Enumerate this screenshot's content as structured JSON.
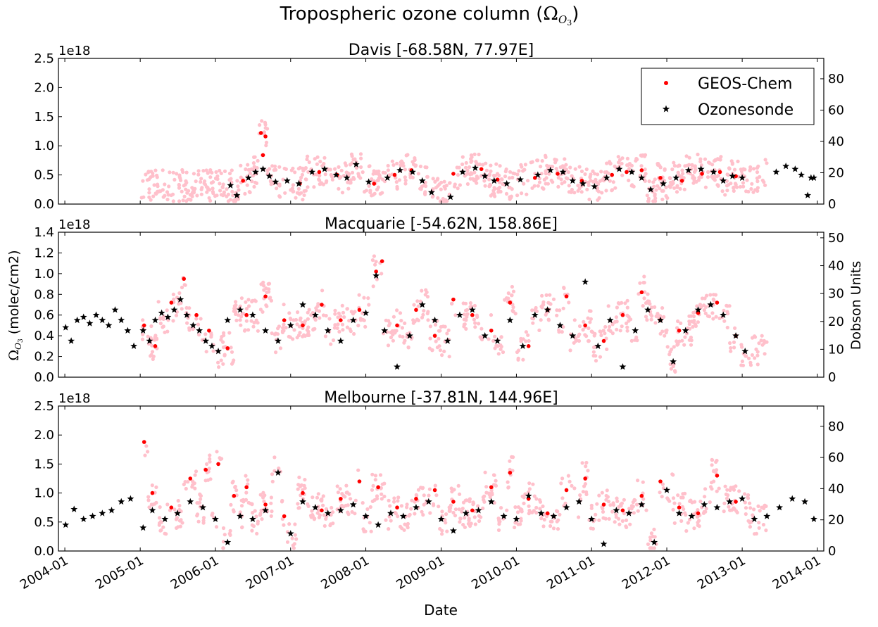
{
  "figure": {
    "title_text": "Tropospheric ozone column (",
    "title_symbol": "Ω",
    "title_sub": "O",
    "title_subsub": "3",
    "title_close": ")",
    "xlabel": "Date",
    "ylabel_left_symbol": "Ω",
    "ylabel_left_sub": "O",
    "ylabel_left_subsub": "3",
    "ylabel_left_rest": " (molec/cm2)",
    "ylabel_right": "Dobson Units",
    "x_ticks": [
      "2004-01",
      "2005-01",
      "2006-01",
      "2007-01",
      "2008-01",
      "2009-01",
      "2010-01",
      "2011-01",
      "2012-01",
      "2013-01",
      "2014-01"
    ],
    "colors": {
      "geos": "#ff0000",
      "geos_light": "#ffc0cb",
      "sonde": "#000000"
    }
  },
  "chart_data": [
    {
      "type": "scatter",
      "title": "Davis [-68.58N, 77.97E]",
      "exponent_label": "1e18",
      "xlim": [
        "2003-12-01",
        "2014-02-01"
      ],
      "ylim": [
        0,
        2.5
      ],
      "y_ticks": [
        "0.0",
        "0.5",
        "1.0",
        "1.5",
        "2.0",
        "2.5"
      ],
      "y2lim": [
        0,
        93
      ],
      "y2_ticks": [
        "0",
        "20",
        "40",
        "60",
        "80"
      ],
      "legend": {
        "placement": "top-right",
        "entries": [
          "GEOS-Chem",
          "Ozonesonde"
        ]
      },
      "series": [
        {
          "name": "GEOS-Chem",
          "color": "#ff0000",
          "marker": "circle",
          "x": [
            "2006-05-15",
            "2006-08-10",
            "2006-08-20",
            "2006-09-01",
            "2007-02-15",
            "2007-05-20",
            "2007-08-15",
            "2008-02-10",
            "2008-05-20",
            "2008-08-10",
            "2009-03-01",
            "2009-07-15",
            "2009-10-01",
            "2010-04-01",
            "2010-07-20",
            "2010-11-15",
            "2011-04-10",
            "2011-06-20",
            "2011-09-01",
            "2011-12-01",
            "2012-03-15",
            "2012-06-20",
            "2012-09-15",
            "2012-12-01"
          ],
          "y": [
            0.4,
            1.22,
            0.84,
            1.16,
            0.35,
            0.55,
            0.5,
            0.35,
            0.5,
            0.58,
            0.52,
            0.6,
            0.42,
            0.45,
            0.52,
            0.4,
            0.5,
            0.55,
            0.58,
            0.45,
            0.4,
            0.52,
            0.55,
            0.48
          ]
        },
        {
          "name": "Ozonesonde",
          "color": "#000000",
          "marker": "star",
          "x": [
            "2006-03-15",
            "2006-04-15",
            "2006-06-10",
            "2006-07-15",
            "2006-08-20",
            "2006-09-20",
            "2006-10-20",
            "2006-12-15",
            "2007-02-10",
            "2007-04-15",
            "2007-06-15",
            "2007-08-10",
            "2007-10-01",
            "2007-11-15",
            "2008-01-15",
            "2008-04-15",
            "2008-06-15",
            "2008-08-15",
            "2008-10-01",
            "2008-11-15",
            "2009-02-15",
            "2009-04-15",
            "2009-06-15",
            "2009-08-01",
            "2009-09-15",
            "2009-11-15",
            "2010-01-20",
            "2010-04-15",
            "2010-06-15",
            "2010-08-15",
            "2010-10-01",
            "2010-11-20",
            "2011-01-15",
            "2011-03-15",
            "2011-05-15",
            "2011-07-15",
            "2011-09-01",
            "2011-10-15",
            "2011-12-15",
            "2012-02-15",
            "2012-04-15",
            "2012-06-15",
            "2012-08-15",
            "2012-10-01",
            "2012-11-15",
            "2013-01-01",
            "2013-06-15",
            "2013-08-01",
            "2013-09-15",
            "2013-10-15",
            "2013-11-15",
            "2013-12-01",
            "2013-12-15"
          ],
          "y": [
            0.32,
            0.15,
            0.45,
            0.55,
            0.6,
            0.48,
            0.38,
            0.4,
            0.35,
            0.55,
            0.6,
            0.5,
            0.45,
            0.68,
            0.38,
            0.45,
            0.58,
            0.55,
            0.4,
            0.2,
            0.12,
            0.55,
            0.62,
            0.48,
            0.4,
            0.35,
            0.42,
            0.5,
            0.58,
            0.55,
            0.4,
            0.35,
            0.3,
            0.45,
            0.6,
            0.55,
            0.45,
            0.25,
            0.35,
            0.45,
            0.58,
            0.6,
            0.55,
            0.4,
            0.48,
            0.45,
            0.55,
            0.65,
            0.6,
            0.5,
            0.15,
            0.45,
            0.45
          ]
        }
      ]
    },
    {
      "type": "scatter",
      "title": "Macquarie [-54.62N, 158.86E]",
      "exponent_label": "1e18",
      "xlim": [
        "2003-12-01",
        "2014-02-01"
      ],
      "ylim": [
        0,
        1.4
      ],
      "y_ticks": [
        "0.0",
        "0.2",
        "0.4",
        "0.6",
        "0.8",
        "1.0",
        "1.2",
        "1.4"
      ],
      "y2lim": [
        0,
        52
      ],
      "y2_ticks": [
        "0",
        "10",
        "20",
        "30",
        "40",
        "50"
      ],
      "series": [
        {
          "name": "GEOS-Chem",
          "color": "#ff0000",
          "marker": "circle",
          "x": [
            "2005-01-20",
            "2005-03-15",
            "2005-06-01",
            "2005-08-01",
            "2005-10-01",
            "2005-12-01",
            "2006-03-01",
            "2006-06-01",
            "2006-09-01",
            "2006-12-01",
            "2007-03-01",
            "2007-06-01",
            "2007-09-01",
            "2007-12-01",
            "2008-02-20",
            "2008-03-20",
            "2008-06-01",
            "2008-09-01",
            "2008-12-01",
            "2009-03-01",
            "2009-06-01",
            "2009-09-01",
            "2009-12-01",
            "2010-03-01",
            "2010-06-01",
            "2010-09-01",
            "2010-12-01",
            "2011-03-01",
            "2011-06-01",
            "2011-09-01",
            "2011-12-01",
            "2012-03-01",
            "2012-06-01",
            "2012-09-01",
            "2012-12-01"
          ],
          "y": [
            0.5,
            0.3,
            0.72,
            0.95,
            0.6,
            0.45,
            0.28,
            0.6,
            0.78,
            0.55,
            0.5,
            0.7,
            0.55,
            0.65,
            1.02,
            1.12,
            0.5,
            0.65,
            0.4,
            0.75,
            0.6,
            0.45,
            0.72,
            0.3,
            0.65,
            0.78,
            0.5,
            0.35,
            0.6,
            0.82,
            0.55,
            0.45,
            0.62,
            0.72,
            0.4
          ]
        },
        {
          "name": "Ozonesonde",
          "color": "#000000",
          "marker": "star",
          "x": [
            "2004-01-05",
            "2004-02-01",
            "2004-03-01",
            "2004-04-01",
            "2004-05-01",
            "2004-06-01",
            "2004-07-01",
            "2004-08-01",
            "2004-09-01",
            "2004-10-01",
            "2004-11-01",
            "2004-12-01",
            "2005-01-15",
            "2005-02-15",
            "2005-03-15",
            "2005-04-15",
            "2005-05-15",
            "2005-06-15",
            "2005-07-15",
            "2005-08-15",
            "2005-09-15",
            "2005-10-15",
            "2005-11-15",
            "2005-12-15",
            "2006-01-15",
            "2006-03-01",
            "2006-05-01",
            "2006-07-01",
            "2006-09-01",
            "2006-11-01",
            "2007-01-01",
            "2007-03-01",
            "2007-05-01",
            "2007-07-01",
            "2007-09-01",
            "2007-11-01",
            "2008-01-01",
            "2008-02-20",
            "2008-04-01",
            "2008-06-01",
            "2008-08-01",
            "2008-10-01",
            "2008-12-01",
            "2009-02-01",
            "2009-04-01",
            "2009-06-01",
            "2009-08-01",
            "2009-10-01",
            "2009-12-01",
            "2010-02-01",
            "2010-04-01",
            "2010-06-01",
            "2010-08-01",
            "2010-10-01",
            "2010-12-01",
            "2011-02-01",
            "2011-04-01",
            "2011-06-01",
            "2011-08-01",
            "2011-10-01",
            "2011-12-01",
            "2012-02-01",
            "2012-04-01",
            "2012-06-01",
            "2012-08-01",
            "2012-10-01",
            "2012-12-01",
            "2013-01-15"
          ],
          "y": [
            0.48,
            0.35,
            0.55,
            0.58,
            0.52,
            0.6,
            0.55,
            0.5,
            0.65,
            0.55,
            0.45,
            0.3,
            0.45,
            0.35,
            0.55,
            0.62,
            0.58,
            0.65,
            0.75,
            0.6,
            0.5,
            0.45,
            0.35,
            0.3,
            0.25,
            0.55,
            0.65,
            0.6,
            0.45,
            0.35,
            0.5,
            0.7,
            0.6,
            0.45,
            0.35,
            0.55,
            0.62,
            0.98,
            0.45,
            0.1,
            0.4,
            0.7,
            0.55,
            0.35,
            0.6,
            0.65,
            0.4,
            0.35,
            0.55,
            0.3,
            0.6,
            0.65,
            0.5,
            0.4,
            0.92,
            0.3,
            0.55,
            0.1,
            0.45,
            0.65,
            0.55,
            0.15,
            0.45,
            0.65,
            0.7,
            0.6,
            0.4,
            0.25
          ]
        }
      ]
    },
    {
      "type": "scatter",
      "title": "Melbourne [-37.81N, 144.96E]",
      "exponent_label": "1e18",
      "xlim": [
        "2003-12-01",
        "2014-02-01"
      ],
      "ylim": [
        0,
        2.5
      ],
      "y_ticks": [
        "0.0",
        "0.5",
        "1.0",
        "1.5",
        "2.0",
        "2.5"
      ],
      "y2lim": [
        0,
        93
      ],
      "y2_ticks": [
        "0",
        "20",
        "40",
        "60",
        "80"
      ],
      "series": [
        {
          "name": "GEOS-Chem",
          "color": "#ff0000",
          "marker": "circle",
          "x": [
            "2005-01-20",
            "2005-03-01",
            "2005-06-01",
            "2005-09-01",
            "2005-11-15",
            "2006-01-15",
            "2006-04-01",
            "2006-06-01",
            "2006-09-01",
            "2006-12-01",
            "2007-03-01",
            "2007-06-01",
            "2007-09-01",
            "2007-12-01",
            "2008-03-01",
            "2008-06-01",
            "2008-09-01",
            "2008-12-01",
            "2009-03-01",
            "2009-06-01",
            "2009-09-01",
            "2009-12-01",
            "2010-03-01",
            "2010-06-01",
            "2010-09-01",
            "2010-12-01",
            "2011-03-01",
            "2011-06-01",
            "2011-09-01",
            "2011-12-01",
            "2012-03-01",
            "2012-06-01",
            "2012-09-01",
            "2012-12-01"
          ],
          "y": [
            1.88,
            1.0,
            0.75,
            1.25,
            1.4,
            1.5,
            0.95,
            1.1,
            0.8,
            0.6,
            1.0,
            0.7,
            0.9,
            1.2,
            1.1,
            0.75,
            0.9,
            1.05,
            0.85,
            0.7,
            1.1,
            1.35,
            0.9,
            0.65,
            1.05,
            1.25,
            0.8,
            0.7,
            0.95,
            1.2,
            0.75,
            0.65,
            1.3,
            0.85
          ]
        },
        {
          "name": "Ozonesonde",
          "color": "#000000",
          "marker": "star",
          "x": [
            "2004-01-05",
            "2004-02-15",
            "2004-04-01",
            "2004-05-15",
            "2004-07-01",
            "2004-08-15",
            "2004-10-01",
            "2004-11-15",
            "2005-01-15",
            "2005-03-01",
            "2005-05-01",
            "2005-07-01",
            "2005-09-01",
            "2005-11-01",
            "2006-01-01",
            "2006-03-01",
            "2006-05-01",
            "2006-07-01",
            "2006-09-01",
            "2006-11-01",
            "2007-01-01",
            "2007-03-01",
            "2007-05-01",
            "2007-07-01",
            "2007-09-01",
            "2007-11-01",
            "2008-01-01",
            "2008-03-01",
            "2008-05-01",
            "2008-07-01",
            "2008-09-01",
            "2008-11-01",
            "2009-01-01",
            "2009-03-01",
            "2009-05-01",
            "2009-07-01",
            "2009-09-01",
            "2009-11-01",
            "2010-01-01",
            "2010-03-01",
            "2010-05-01",
            "2010-07-01",
            "2010-09-01",
            "2010-11-01",
            "2011-01-01",
            "2011-03-01",
            "2011-05-01",
            "2011-07-01",
            "2011-09-01",
            "2011-11-01",
            "2012-01-01",
            "2012-03-01",
            "2012-05-01",
            "2012-07-01",
            "2012-09-01",
            "2012-11-01",
            "2013-01-01",
            "2013-03-01",
            "2013-05-01",
            "2013-07-01",
            "2013-09-01",
            "2013-11-01",
            "2013-12-15"
          ],
          "y": [
            0.45,
            0.72,
            0.55,
            0.6,
            0.65,
            0.7,
            0.85,
            0.9,
            0.4,
            0.7,
            0.55,
            0.65,
            0.85,
            0.75,
            0.55,
            0.15,
            0.6,
            0.55,
            0.7,
            1.35,
            0.3,
            0.85,
            0.75,
            0.65,
            0.7,
            0.8,
            0.6,
            0.45,
            0.65,
            0.6,
            0.75,
            0.85,
            0.55,
            0.35,
            0.65,
            0.7,
            0.85,
            0.6,
            0.55,
            0.95,
            0.65,
            0.6,
            0.75,
            0.85,
            0.55,
            0.12,
            0.7,
            0.65,
            0.8,
            0.15,
            1.05,
            0.65,
            0.6,
            0.8,
            0.75,
            0.85,
            0.9,
            0.55,
            0.6,
            0.75,
            0.9,
            0.85,
            0.55
          ]
        }
      ]
    }
  ]
}
